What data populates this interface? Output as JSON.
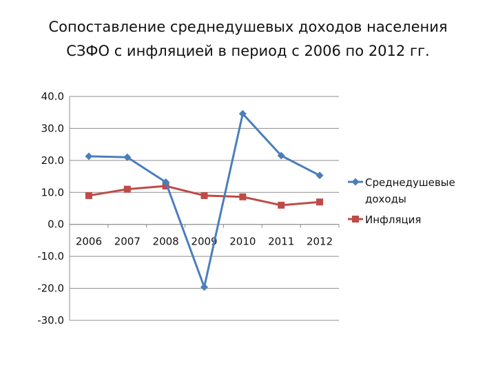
{
  "chart_data": {
    "type": "line",
    "title_lines": [
      "Сопоставление среднедушевых доходов населения",
      "СЗФО с инфляцией в период с 2006 по 2012 гг."
    ],
    "categories": [
      "2006",
      "2007",
      "2008",
      "2009",
      "2010",
      "2011",
      "2012"
    ],
    "y_ticks": [
      "40.0",
      "30.0",
      "20.0",
      "10.0",
      "0.0",
      "-10.0",
      "-20.0",
      "-30.0"
    ],
    "ylim": [
      -30,
      40
    ],
    "grid": true,
    "legend_position": "right",
    "series": [
      {
        "name_lines": [
          "Среднедушевые",
          "доходы"
        ],
        "values": [
          21.3,
          21.0,
          13.2,
          -19.6,
          34.6,
          21.5,
          15.3
        ],
        "color": "#4a7ebb",
        "marker": "diamond"
      },
      {
        "name_lines": [
          "Инфляция"
        ],
        "values": [
          9.0,
          11.0,
          12.0,
          9.0,
          8.6,
          6.0,
          7.0
        ],
        "color": "#be4b48",
        "marker": "square"
      }
    ]
  }
}
